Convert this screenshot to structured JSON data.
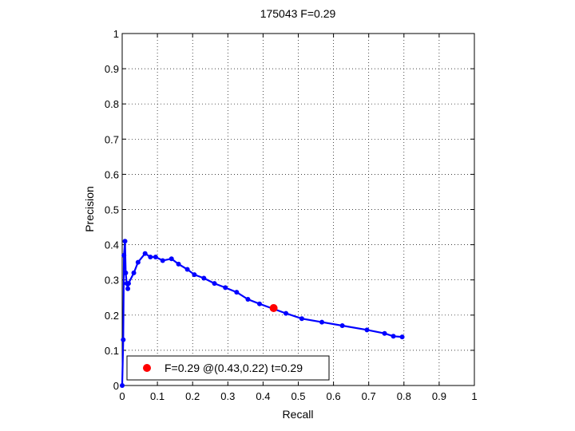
{
  "chart_data": {
    "type": "line",
    "title": "175043 F=0.29",
    "xlabel": "Recall",
    "ylabel": "Precision",
    "xlim": [
      0,
      1
    ],
    "ylim": [
      0,
      1
    ],
    "xticks": [
      "0",
      "0.1",
      "0.2",
      "0.3",
      "0.4",
      "0.5",
      "0.6",
      "0.7",
      "0.8",
      "0.9",
      "1"
    ],
    "yticks": [
      "0",
      "0.1",
      "0.2",
      "0.3",
      "0.4",
      "0.5",
      "0.6",
      "0.7",
      "0.8",
      "0.9",
      "1"
    ],
    "grid": true,
    "legend_position": "bottom-left",
    "series": [
      {
        "color": "#0000ff",
        "x": [
          0.0,
          0.003,
          0.005,
          0.008,
          0.01,
          0.013,
          0.016,
          0.018,
          0.033,
          0.045,
          0.065,
          0.08,
          0.095,
          0.115,
          0.14,
          0.16,
          0.185,
          0.205,
          0.232,
          0.262,
          0.293,
          0.325,
          0.357,
          0.39,
          0.465,
          0.51,
          0.567,
          0.625,
          0.695,
          0.745,
          0.77,
          0.795
        ],
        "y": [
          0.0,
          0.13,
          0.37,
          0.41,
          0.32,
          0.29,
          0.275,
          0.29,
          0.32,
          0.35,
          0.375,
          0.365,
          0.365,
          0.355,
          0.36,
          0.345,
          0.33,
          0.315,
          0.305,
          0.29,
          0.278,
          0.265,
          0.245,
          0.232,
          0.205,
          0.19,
          0.18,
          0.17,
          0.158,
          0.148,
          0.14,
          0.138
        ]
      }
    ],
    "marker": {
      "x": 0.43,
      "y": 0.22,
      "color": "#ff0000",
      "label": "F=0.29 @(0.43,0.22) t=0.29"
    }
  }
}
